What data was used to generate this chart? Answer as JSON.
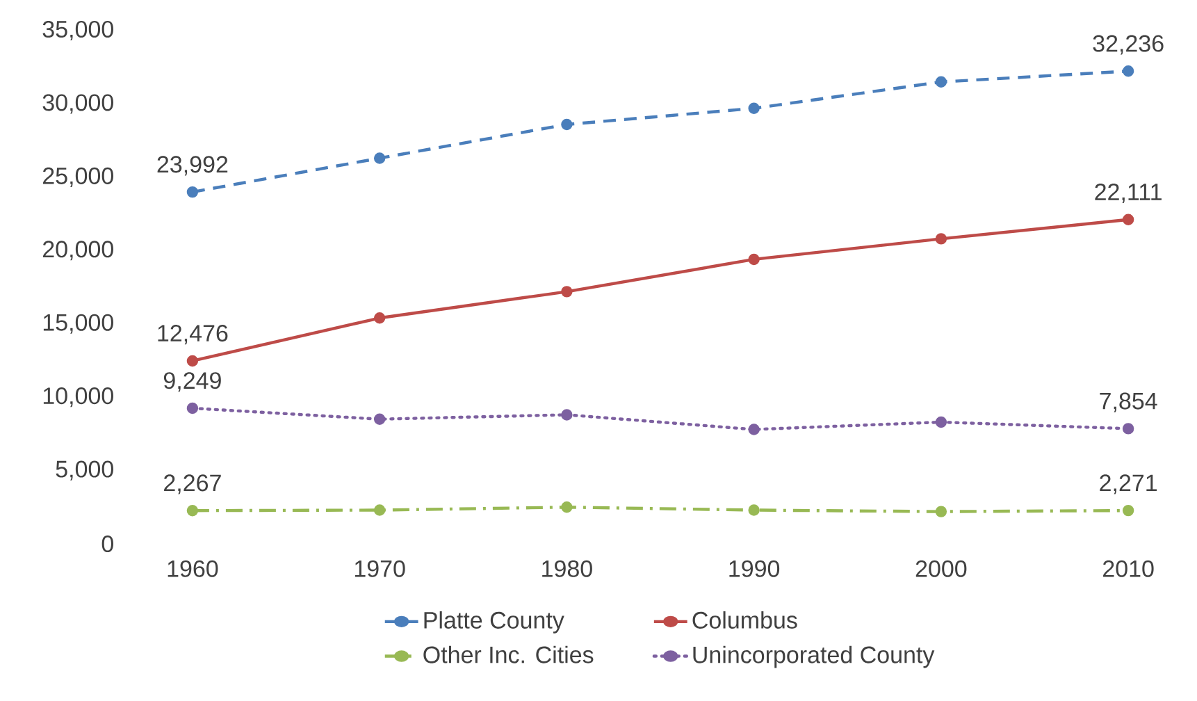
{
  "chart_data": {
    "type": "line",
    "x": [
      1960,
      1970,
      1980,
      1990,
      2000,
      2010
    ],
    "xlim": [
      1960,
      2010
    ],
    "xticks": [
      1960,
      1970,
      1980,
      1990,
      2000,
      2010
    ],
    "ylim": [
      0,
      35000
    ],
    "yticks": [
      {
        "value": 0,
        "label": "0"
      },
      {
        "value": 5000,
        "label": "5,000"
      },
      {
        "value": 10000,
        "label": "10,000"
      },
      {
        "value": 15000,
        "label": "15,000"
      },
      {
        "value": 20000,
        "label": "20,000"
      },
      {
        "value": 25000,
        "label": "25,000"
      },
      {
        "value": 30000,
        "label": "30,000"
      },
      {
        "value": 35000,
        "label": "35,000"
      }
    ],
    "marker": "circle",
    "legend": "bottom",
    "grid": false,
    "series": [
      {
        "name": "Platte County",
        "color": "#4a7ebb",
        "line_style": "dashed",
        "values": [
          23992,
          26300,
          28600,
          29700,
          31500,
          32236
        ],
        "value_labels": [
          "23,992",
          null,
          null,
          null,
          null,
          "32,236"
        ]
      },
      {
        "name": "Columbus",
        "color": "#be4b48",
        "line_style": "solid",
        "values": [
          12476,
          15400,
          17200,
          19400,
          20800,
          22111
        ],
        "value_labels": [
          "12,476",
          null,
          null,
          null,
          null,
          "22,111"
        ]
      },
      {
        "name": "Other Inc. Cities",
        "color": "#98b954",
        "line_style": "dashdot",
        "values": [
          2267,
          2300,
          2500,
          2300,
          2200,
          2271
        ],
        "value_labels": [
          "2,267",
          null,
          null,
          null,
          null,
          "2,271"
        ]
      },
      {
        "name": "Unincorporated County",
        "color": "#7d60a0",
        "line_style": "dotted",
        "values": [
          9249,
          8500,
          8800,
          7800,
          8300,
          7854
        ],
        "value_labels": [
          "9,249",
          null,
          null,
          null,
          null,
          "7,854"
        ]
      }
    ]
  }
}
